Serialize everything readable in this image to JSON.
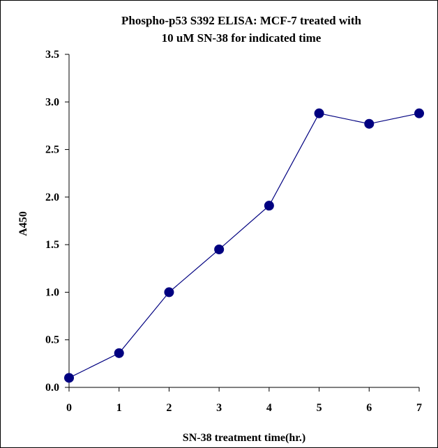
{
  "chart_data": {
    "type": "line",
    "title_lines": [
      "Phospho-p53 S392 ELISA: MCF-7 treated with",
      "10 uM SN-38 for indicated time"
    ],
    "xlabel": "SN-38 treatment time(hr.)",
    "ylabel": "A450",
    "x": [
      0,
      1,
      2,
      3,
      4,
      5,
      6,
      7
    ],
    "series": [
      {
        "values": [
          0.1,
          0.36,
          1.0,
          1.45,
          1.91,
          2.88,
          2.77,
          2.88
        ]
      }
    ],
    "xticks": [
      "0",
      "1",
      "2",
      "3",
      "4",
      "5",
      "6",
      "7"
    ],
    "yticks": [
      "0.0",
      "0.5",
      "1.0",
      "1.5",
      "2.0",
      "2.5",
      "3.0",
      "3.5"
    ],
    "xlim": [
      0,
      7
    ],
    "ylim": [
      0,
      3.5
    ],
    "grid": false,
    "legend": "none",
    "colors": {
      "line": "#000080",
      "marker": "#000080",
      "axis": "#000000"
    },
    "marker": "circle"
  }
}
